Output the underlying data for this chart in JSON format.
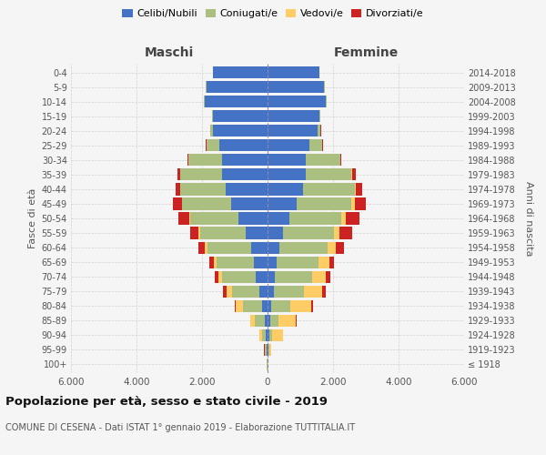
{
  "age_groups": [
    "100+",
    "95-99",
    "90-94",
    "85-89",
    "80-84",
    "75-79",
    "70-74",
    "65-69",
    "60-64",
    "55-59",
    "50-54",
    "45-49",
    "40-44",
    "35-39",
    "30-34",
    "25-29",
    "20-24",
    "15-19",
    "10-14",
    "5-9",
    "0-4"
  ],
  "birth_years": [
    "≤ 1918",
    "1919-1923",
    "1924-1928",
    "1929-1933",
    "1934-1938",
    "1939-1943",
    "1944-1948",
    "1949-1953",
    "1954-1958",
    "1959-1963",
    "1964-1968",
    "1969-1973",
    "1974-1978",
    "1979-1983",
    "1984-1988",
    "1989-1993",
    "1994-1998",
    "1999-2003",
    "2004-2008",
    "2009-2013",
    "2014-2018"
  ],
  "maschi": {
    "celibi": [
      8,
      25,
      55,
      90,
      170,
      260,
      350,
      420,
      510,
      680,
      880,
      1120,
      1280,
      1380,
      1380,
      1480,
      1680,
      1680,
      1920,
      1870,
      1670
    ],
    "coniugati": [
      8,
      45,
      120,
      310,
      580,
      830,
      1030,
      1130,
      1330,
      1380,
      1480,
      1480,
      1380,
      1280,
      1030,
      380,
      75,
      18,
      25,
      8,
      8
    ],
    "vedovi": [
      4,
      25,
      75,
      120,
      220,
      170,
      125,
      95,
      75,
      45,
      35,
      25,
      18,
      12,
      8,
      4,
      4,
      2,
      2,
      1,
      1
    ],
    "divorziati": [
      2,
      4,
      12,
      18,
      28,
      95,
      115,
      125,
      195,
      270,
      340,
      260,
      125,
      65,
      28,
      12,
      4,
      2,
      2,
      1,
      1
    ]
  },
  "femmine": {
    "nubili": [
      8,
      18,
      45,
      70,
      120,
      185,
      235,
      265,
      365,
      460,
      680,
      880,
      1080,
      1180,
      1180,
      1280,
      1530,
      1580,
      1780,
      1730,
      1580
    ],
    "coniugate": [
      4,
      25,
      90,
      260,
      580,
      930,
      1130,
      1280,
      1480,
      1580,
      1580,
      1680,
      1580,
      1380,
      1030,
      380,
      90,
      18,
      18,
      8,
      4
    ],
    "vedove": [
      8,
      75,
      340,
      540,
      640,
      540,
      420,
      340,
      230,
      145,
      115,
      95,
      45,
      28,
      18,
      8,
      4,
      2,
      2,
      1,
      1
    ],
    "divorziate": [
      2,
      4,
      8,
      18,
      35,
      115,
      125,
      145,
      270,
      390,
      440,
      340,
      175,
      95,
      35,
      18,
      8,
      2,
      2,
      1,
      1
    ]
  },
  "colors": {
    "celibi": "#4472C4",
    "coniugati": "#AABF80",
    "vedovi": "#FFCC66",
    "divorziati": "#CC2222"
  },
  "title": "Popolazione per età, sesso e stato civile - 2019",
  "subtitle": "COMUNE DI CESENA - Dati ISTAT 1° gennaio 2019 - Elaborazione TUTTITALIA.IT",
  "xlabel_left": "Maschi",
  "xlabel_right": "Femmine",
  "ylabel_left": "Fasce di età",
  "ylabel_right": "Anni di nascita",
  "xlim": 6000,
  "xtick_vals": [
    -6000,
    -4000,
    -2000,
    0,
    2000,
    4000,
    6000
  ],
  "xtick_labels": [
    "6.000",
    "4.000",
    "2.000",
    "0",
    "2.000",
    "4.000",
    "6.000"
  ],
  "legend_labels": [
    "Celibi/Nubili",
    "Coniugati/e",
    "Vedovi/e",
    "Divorziati/e"
  ],
  "background_color": "#f5f5f5",
  "grid_color": "#cccccc"
}
